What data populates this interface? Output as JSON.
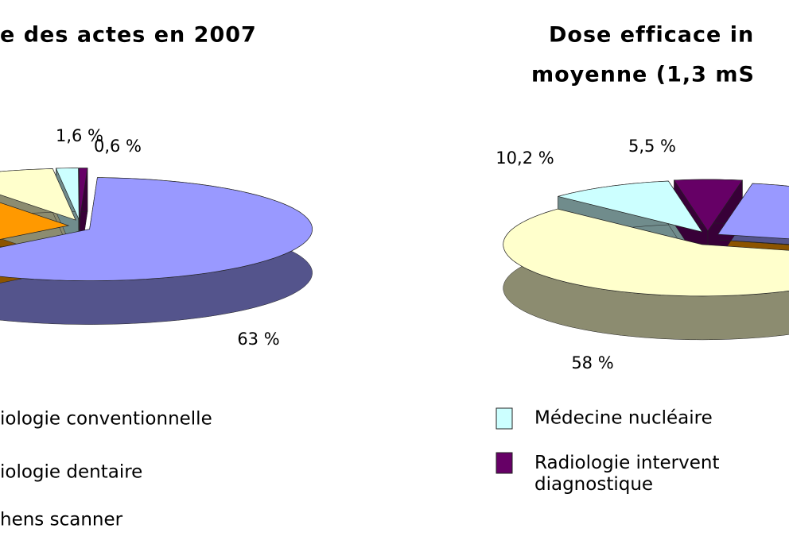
{
  "chart_data": [
    {
      "type": "pie",
      "title": [
        "e des actes en 2007"
      ],
      "categories": [
        "iologie conventionnelle",
        "iologie dentaire",
        "hens scanner",
        null,
        null
      ],
      "values": [
        63,
        26.8,
        8,
        1.6,
        0.6
      ],
      "value_labels": [
        "63 %",
        null,
        null,
        "1,6 %",
        "0,6 %"
      ],
      "colors": [
        "#9999ff",
        "#ff9900",
        "#ffffcc",
        "#ccffff",
        "#660066"
      ]
    },
    {
      "type": "pie",
      "title": [
        "Dose efficace in",
        "moyenne  (1,3 mS"
      ],
      "categories": [
        null,
        null,
        null,
        "Médecine nucléaire",
        "Radiologie intervent\ndiagnostique"
      ],
      "values": [
        26,
        0.3,
        58,
        10.2,
        5.5
      ],
      "value_labels": [
        null,
        null,
        "58 %",
        "10,2 %",
        "5,5 %"
      ],
      "colors": [
        "#9999ff",
        "#ff9900",
        "#ffffcc",
        "#ccffff",
        "#660066"
      ]
    }
  ]
}
